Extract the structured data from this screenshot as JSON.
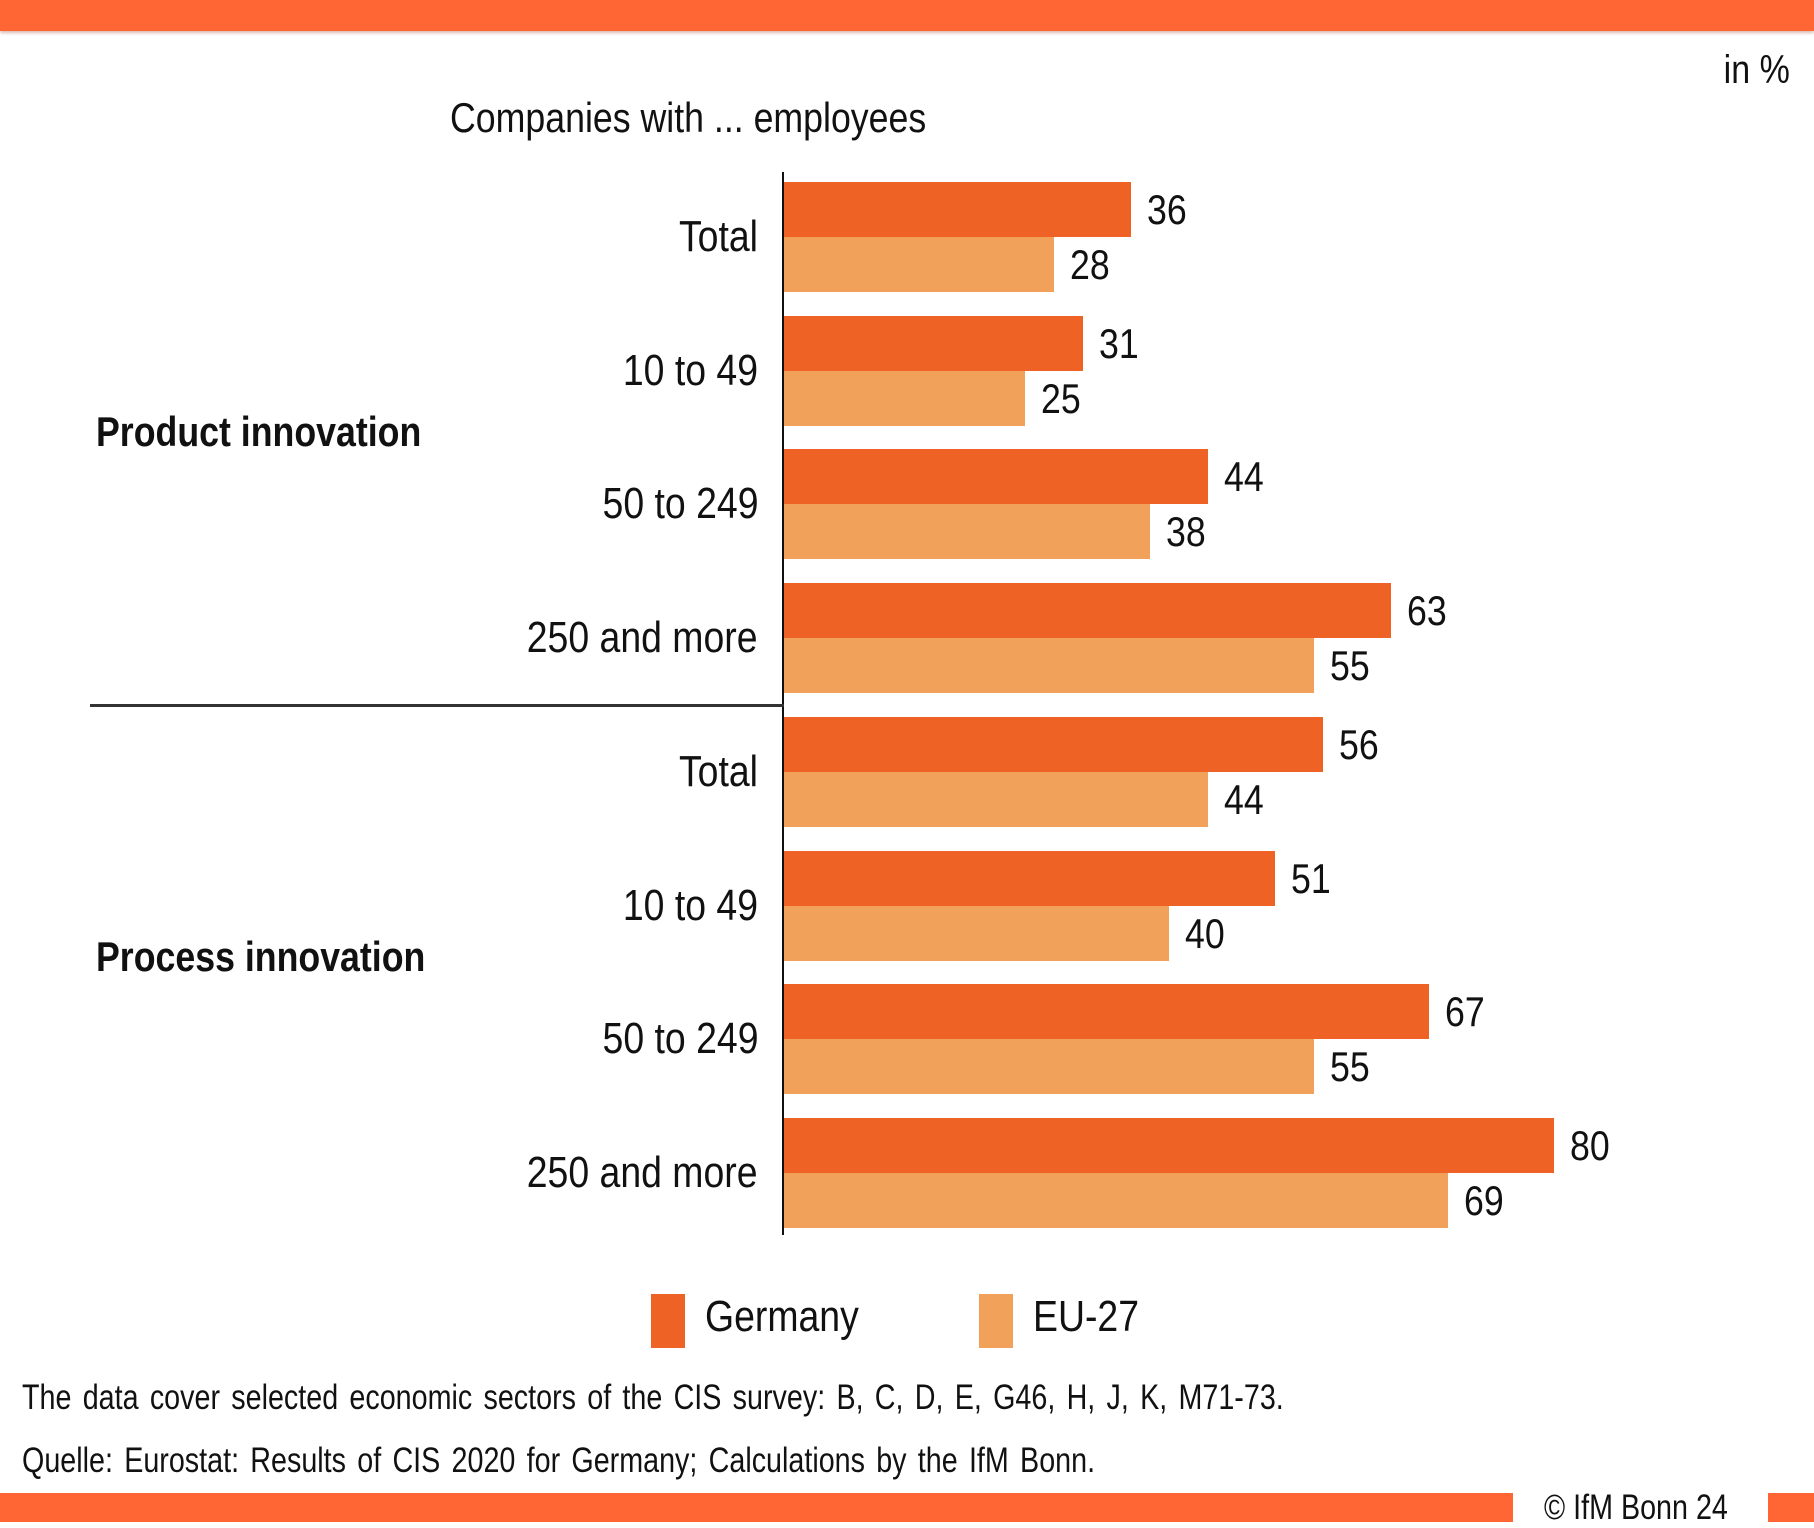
{
  "colors": {
    "germany": "#ee6225",
    "eu27": "#f2a15a",
    "brand": "#ff6633"
  },
  "unit_label": "in %",
  "subtitle": "Companies with ... employees",
  "footer": {
    "note": "The data cover  selected economic sectors  of the CIS survey:  B, C, D, E, G46, H, J, K, M71-73.",
    "source": "Quelle:  Eurostat: Results of CIS 2020 for Germany;  Calculations by the IfM Bonn.",
    "copyright": "© IfM  Bonn 24"
  },
  "chart_data": {
    "type": "bar",
    "orientation": "horizontal",
    "title": "Companies with ... employees",
    "unit": "in %",
    "xlabel": "",
    "ylabel": "",
    "xlim": [
      0,
      100
    ],
    "grid": false,
    "legend": {
      "placement": "bottom",
      "entries": [
        "Germany",
        "EU-27"
      ]
    },
    "groups": [
      {
        "name": "Product innovation",
        "categories": [
          "Total",
          "10 to 49",
          "50 to 249",
          "250 and more"
        ],
        "series": [
          {
            "name": "Germany",
            "values": [
              36,
              31,
              44,
              63
            ]
          },
          {
            "name": "EU-27",
            "values": [
              28,
              25,
              38,
              55
            ]
          }
        ]
      },
      {
        "name": "Process innovation",
        "categories": [
          "Total",
          "10 to 49",
          "50 to 249",
          "250 and more"
        ],
        "series": [
          {
            "name": "Germany",
            "values": [
              56,
              51,
              67,
              80
            ]
          },
          {
            "name": "EU-27",
            "values": [
              44,
              40,
              55,
              69
            ]
          }
        ]
      }
    ]
  }
}
